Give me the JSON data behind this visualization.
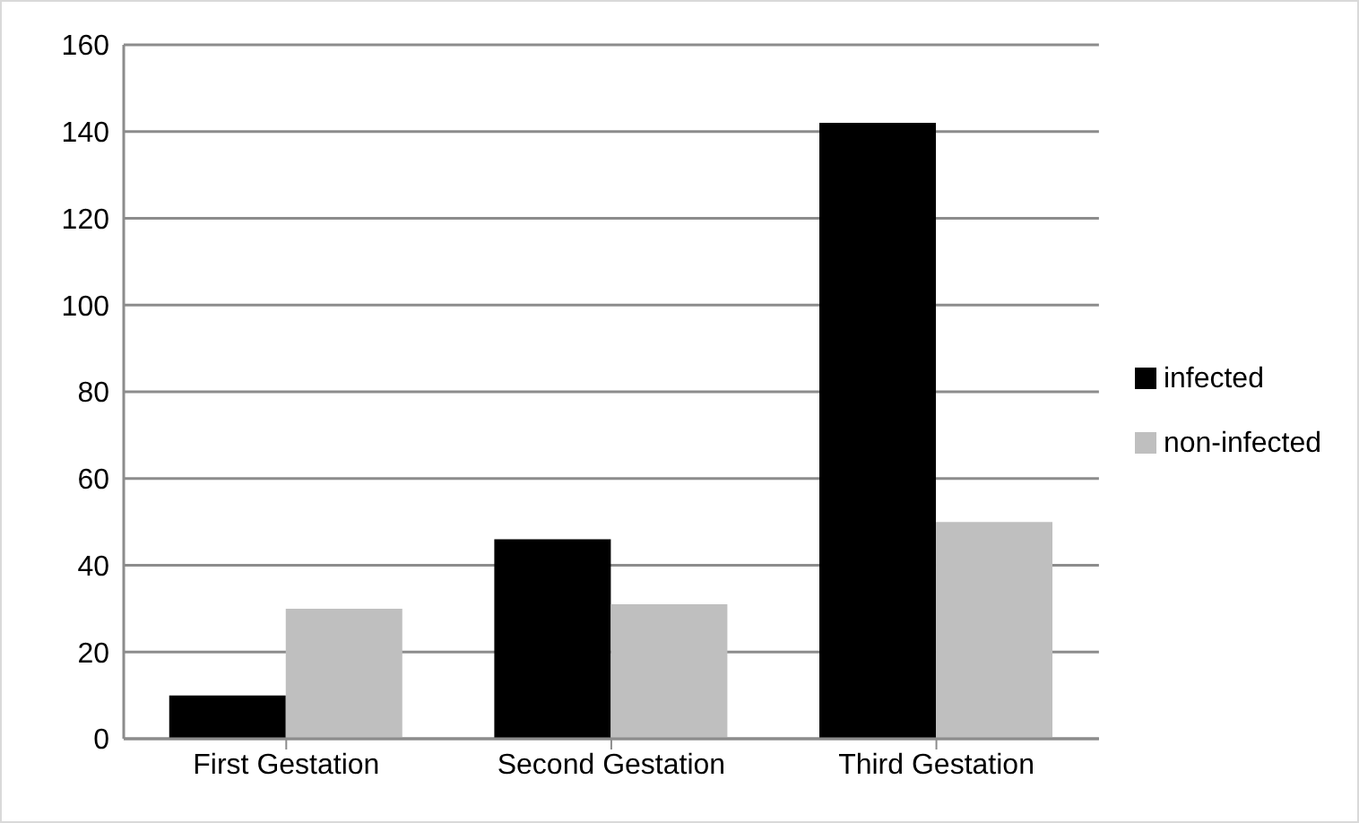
{
  "chart_data": {
    "type": "bar",
    "categories": [
      "First Gestation",
      "Second Gestation",
      "Third Gestation"
    ],
    "series": [
      {
        "name": "infected",
        "color": "#000000",
        "values": [
          10,
          46,
          142
        ]
      },
      {
        "name": "non-infected",
        "color": "#bfbfbf",
        "values": [
          30,
          31,
          50
        ]
      }
    ],
    "ylim": [
      0,
      160
    ],
    "yticks": [
      0,
      20,
      40,
      60,
      80,
      100,
      120,
      140,
      160
    ],
    "grid": "y",
    "legend": "right"
  }
}
